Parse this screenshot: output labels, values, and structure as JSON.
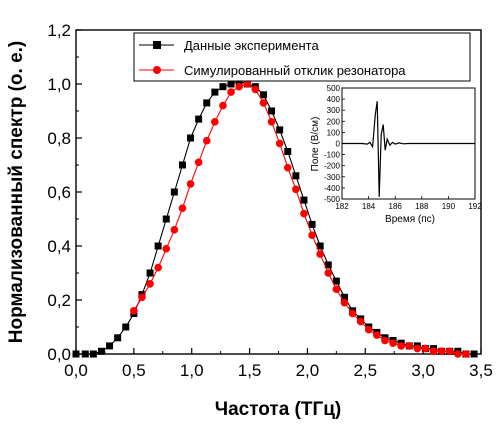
{
  "chart_data": {
    "type": "scatter",
    "xlabel": "Частота (ТГц)",
    "ylabel": "Нормализованный спектр (о. е.)",
    "xlim": [
      0.0,
      3.5
    ],
    "ylim": [
      0.0,
      1.2
    ],
    "xticks": [
      "0,0",
      "0,5",
      "1,0",
      "1,5",
      "2,0",
      "2,5",
      "3,0",
      "3,5"
    ],
    "yticks": [
      "0,0",
      "0,2",
      "0,4",
      "0,6",
      "0,8",
      "1,0",
      "1,2"
    ],
    "grid": false,
    "legend_position": "top-right",
    "series": [
      {
        "name": "Данные эксперимента",
        "color": "#000000",
        "marker": "square",
        "x": [
          0.0,
          0.08,
          0.15,
          0.22,
          0.29,
          0.36,
          0.43,
          0.5,
          0.57,
          0.64,
          0.71,
          0.78,
          0.85,
          0.92,
          0.99,
          1.06,
          1.13,
          1.2,
          1.27,
          1.34,
          1.41,
          1.48,
          1.55,
          1.62,
          1.69,
          1.76,
          1.83,
          1.9,
          1.97,
          2.04,
          2.11,
          2.18,
          2.25,
          2.32,
          2.39,
          2.46,
          2.53,
          2.6,
          2.67,
          2.74,
          2.81,
          2.88,
          2.95,
          3.02,
          3.09,
          3.16,
          3.23,
          3.3,
          3.37,
          3.44
        ],
        "y": [
          0.0,
          0.0,
          0.0,
          0.01,
          0.03,
          0.06,
          0.1,
          0.15,
          0.22,
          0.3,
          0.4,
          0.5,
          0.6,
          0.7,
          0.8,
          0.87,
          0.93,
          0.97,
          0.99,
          1.0,
          1.01,
          1.0,
          0.99,
          0.96,
          0.9,
          0.83,
          0.75,
          0.66,
          0.57,
          0.48,
          0.4,
          0.33,
          0.27,
          0.21,
          0.16,
          0.13,
          0.1,
          0.08,
          0.06,
          0.05,
          0.04,
          0.03,
          0.03,
          0.02,
          0.02,
          0.01,
          0.01,
          0.01,
          0.0,
          0.0
        ]
      },
      {
        "name": "Симулированный отклик резонатора",
        "color": "#ff0000",
        "marker": "circle",
        "x": [
          0.5,
          0.57,
          0.64,
          0.71,
          0.78,
          0.85,
          0.92,
          0.99,
          1.06,
          1.13,
          1.2,
          1.27,
          1.34,
          1.41,
          1.48,
          1.55,
          1.62,
          1.69,
          1.76,
          1.83,
          1.9,
          1.97,
          2.04,
          2.11,
          2.18,
          2.25,
          2.32,
          2.39,
          2.46,
          2.53,
          2.6,
          2.67,
          2.74,
          2.81,
          2.88,
          2.95,
          3.02,
          3.09,
          3.16,
          3.23,
          3.3,
          3.37
        ],
        "y": [
          0.16,
          0.21,
          0.26,
          0.32,
          0.39,
          0.46,
          0.54,
          0.63,
          0.71,
          0.79,
          0.86,
          0.92,
          0.97,
          0.99,
          1.0,
          0.98,
          0.93,
          0.86,
          0.78,
          0.69,
          0.61,
          0.52,
          0.44,
          0.37,
          0.3,
          0.24,
          0.19,
          0.15,
          0.12,
          0.09,
          0.07,
          0.05,
          0.04,
          0.03,
          0.03,
          0.02,
          0.02,
          0.01,
          0.01,
          0.01,
          0.0,
          0.0
        ]
      }
    ],
    "inset": {
      "type": "line",
      "xlabel": "Время (пс)",
      "ylabel": "Поле (В/см)",
      "xlim": [
        182,
        192
      ],
      "ylim": [
        -500,
        500
      ],
      "xticks": [
        "182",
        "184",
        "186",
        "188",
        "190",
        "192"
      ],
      "yticks": [
        "500",
        "400",
        "300",
        "200",
        "100",
        "0",
        "-100",
        "-200",
        "-300",
        "-400",
        "-500"
      ],
      "color": "#000000",
      "x": [
        182.0,
        183.5,
        183.9,
        184.1,
        184.3,
        184.5,
        184.65,
        184.8,
        184.95,
        185.1,
        185.25,
        185.4,
        185.6,
        185.8,
        186.0,
        186.3,
        186.6,
        187.0,
        188.0,
        189.0,
        190.0,
        192.0
      ],
      "y": [
        0,
        0,
        -5,
        10,
        -30,
        260,
        380,
        -480,
        80,
        170,
        -60,
        40,
        -15,
        10,
        -5,
        5,
        -3,
        0,
        0,
        0,
        0,
        0
      ]
    }
  }
}
